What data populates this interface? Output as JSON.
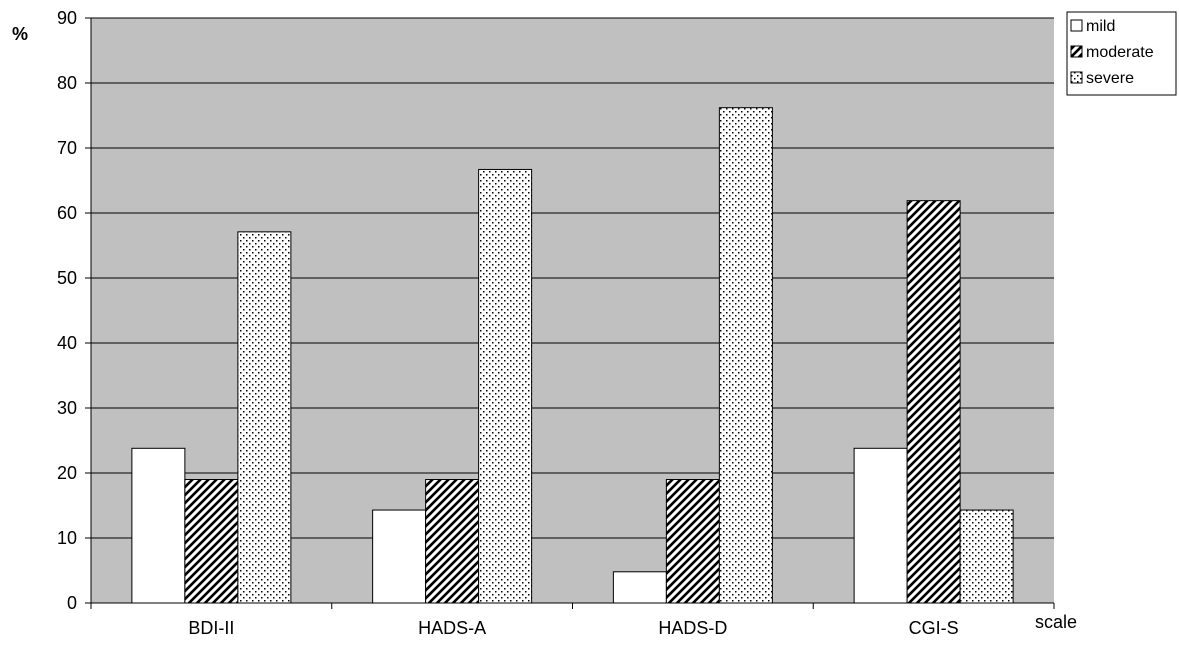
{
  "chart_data": {
    "type": "bar",
    "categories": [
      "BDI-II",
      "HADS-A",
      "HADS-D",
      "CGI-S"
    ],
    "series": [
      {
        "name": "mild",
        "values": [
          23.8,
          14.3,
          4.8,
          23.8
        ],
        "pattern": "none"
      },
      {
        "name": "moderate",
        "values": [
          19.0,
          19.0,
          19.0,
          61.9
        ],
        "pattern": "diagonal-hatch"
      },
      {
        "name": "severe",
        "values": [
          57.1,
          66.7,
          76.2,
          14.3
        ],
        "pattern": "dots"
      }
    ],
    "title": "",
    "xlabel": "scale",
    "ylabel": "%",
    "ylim": [
      0,
      90
    ],
    "yticks": [
      0,
      10,
      20,
      30,
      40,
      50,
      60,
      70,
      80,
      90
    ],
    "grid": true,
    "legend_position": "top-right",
    "colors": {
      "plot_background": "#c0c0c0",
      "bar_fill": "#ffffff",
      "bar_stroke": "#000000",
      "gridline": "#000000"
    }
  }
}
